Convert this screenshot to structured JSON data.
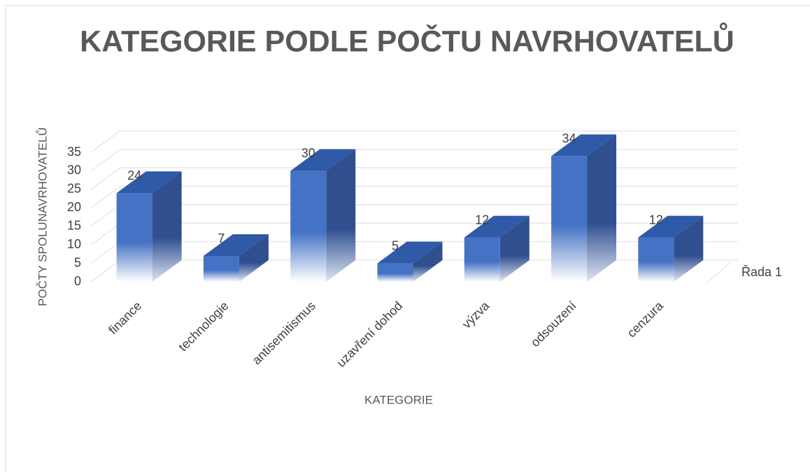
{
  "chart_data": {
    "type": "bar",
    "title": "KATEGORIE PODLE POČTU NAVRHOVATELŮ",
    "x_label": "KATEGORIE",
    "y_label": "POČTY SPOLUNAVRHOVATELŮ",
    "categories": [
      "finance",
      "technologie",
      "antisemitismus",
      "uzavření dohod",
      "výzva",
      "odsouzení",
      "cenzura"
    ],
    "series": [
      {
        "name": "Řada 1",
        "color": "#4472c4",
        "values": [
          24,
          7,
          30,
          5,
          12,
          34,
          12
        ]
      }
    ],
    "ylim": [
      0,
      35
    ],
    "yticks": [
      0,
      5,
      10,
      15,
      20,
      25,
      30,
      35
    ],
    "grid": true
  }
}
